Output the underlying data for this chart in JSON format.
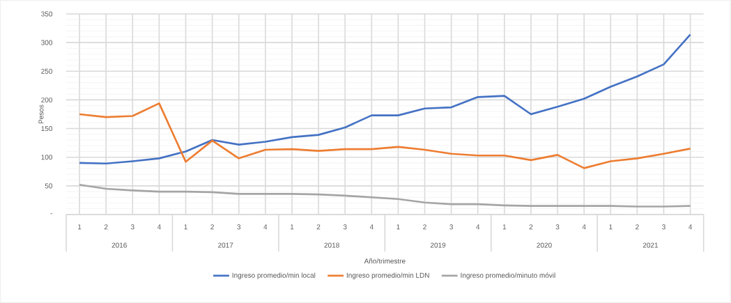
{
  "chart_data": {
    "type": "line",
    "xlabel": "Año/trimestre",
    "ylabel": "Pesos",
    "categories": [
      "1",
      "2",
      "3",
      "4",
      "1",
      "2",
      "3",
      "4",
      "1",
      "2",
      "3",
      "4",
      "1",
      "2",
      "3",
      "4",
      "1",
      "2",
      "3",
      "4",
      "1",
      "2",
      "3",
      "4"
    ],
    "annotations": [
      "2016",
      "2017",
      "2018",
      "2019",
      "2020",
      "2021"
    ],
    "ylim": [
      0,
      350
    ],
    "yticks": [
      {
        "value": 0,
        "label": "-"
      },
      50,
      100,
      150,
      200,
      250,
      300,
      350
    ],
    "grid": true,
    "legend": "bottom",
    "marker": "none",
    "line_style": "solid",
    "series": [
      {
        "name": "Ingreso promedio/min local",
        "color": "#4472c4",
        "values": [
          90,
          89,
          93,
          98,
          110,
          130,
          122,
          127,
          135,
          139,
          152,
          173,
          173,
          185,
          187,
          205,
          207,
          175,
          188,
          202,
          223,
          241,
          262,
          314
        ]
      },
      {
        "name": "Ingreso promedio/min LDN",
        "color": "#ed7d31",
        "values": [
          175,
          170,
          172,
          194,
          92,
          129,
          98,
          113,
          114,
          111,
          114,
          114,
          118,
          113,
          106,
          103,
          103,
          95,
          104,
          81,
          93,
          98,
          106,
          115
        ]
      },
      {
        "name": "Ingreso promedio/minuto móvil",
        "color": "#a5a5a5",
        "values": [
          52,
          45,
          42,
          40,
          40,
          39,
          36,
          36,
          36,
          35,
          33,
          30,
          27,
          21,
          18,
          18,
          16,
          15,
          15,
          15,
          15,
          14,
          14,
          15
        ]
      }
    ]
  }
}
